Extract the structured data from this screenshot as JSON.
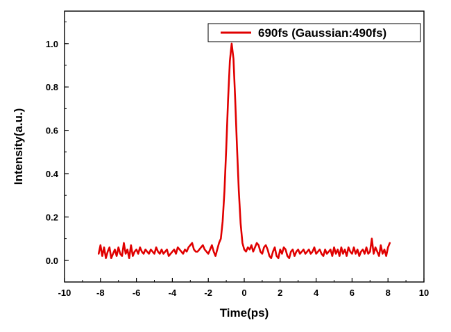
{
  "chart_data": {
    "type": "line",
    "title": "",
    "xlabel": "Time(ps)",
    "ylabel": "Intensity(a.u.)",
    "xlim": [
      -10,
      10
    ],
    "ylim": [
      -0.1,
      1.15
    ],
    "xticks": [
      -10,
      -8,
      -6,
      -4,
      -2,
      0,
      2,
      4,
      6,
      8,
      10
    ],
    "xtick_labels": [
      "-10",
      "-8",
      "-6",
      "-4",
      "-2",
      "0",
      "2",
      "4",
      "6",
      "8",
      "10"
    ],
    "yticks": [
      0.0,
      0.2,
      0.4,
      0.6,
      0.8,
      1.0
    ],
    "ytick_labels": [
      "0.0",
      "0.2",
      "0.4",
      "0.6",
      "0.8",
      "1.0"
    ],
    "grid": false,
    "legend_position": "top-right",
    "series": [
      {
        "name": "690fs (Gaussian:490fs)",
        "color": "#e00000",
        "x": [
          -8.1,
          -8.0,
          -7.9,
          -7.8,
          -7.7,
          -7.6,
          -7.5,
          -7.4,
          -7.3,
          -7.2,
          -7.1,
          -7.0,
          -6.9,
          -6.8,
          -6.7,
          -6.6,
          -6.5,
          -6.4,
          -6.3,
          -6.2,
          -6.1,
          -6.0,
          -5.9,
          -5.8,
          -5.7,
          -5.6,
          -5.5,
          -5.4,
          -5.3,
          -5.2,
          -5.1,
          -5.0,
          -4.9,
          -4.8,
          -4.7,
          -4.6,
          -4.5,
          -4.4,
          -4.3,
          -4.2,
          -4.1,
          -4.0,
          -3.9,
          -3.8,
          -3.7,
          -3.6,
          -3.5,
          -3.4,
          -3.3,
          -3.2,
          -3.1,
          -3.0,
          -2.9,
          -2.8,
          -2.7,
          -2.6,
          -2.5,
          -2.4,
          -2.3,
          -2.2,
          -2.1,
          -2.0,
          -1.9,
          -1.8,
          -1.7,
          -1.6,
          -1.5,
          -1.4,
          -1.3,
          -1.2,
          -1.1,
          -1.0,
          -0.9,
          -0.8,
          -0.7,
          -0.6,
          -0.5,
          -0.4,
          -0.3,
          -0.2,
          -0.1,
          0.0,
          0.1,
          0.2,
          0.3,
          0.4,
          0.5,
          0.6,
          0.7,
          0.8,
          0.9,
          1.0,
          1.1,
          1.2,
          1.3,
          1.4,
          1.5,
          1.6,
          1.7,
          1.8,
          1.9,
          2.0,
          2.1,
          2.2,
          2.3,
          2.4,
          2.5,
          2.6,
          2.7,
          2.8,
          2.9,
          3.0,
          3.1,
          3.2,
          3.3,
          3.4,
          3.5,
          3.6,
          3.7,
          3.8,
          3.9,
          4.0,
          4.1,
          4.2,
          4.3,
          4.4,
          4.5,
          4.6,
          4.7,
          4.8,
          4.9,
          5.0,
          5.1,
          5.2,
          5.3,
          5.4,
          5.5,
          5.6,
          5.7,
          5.8,
          5.9,
          6.0,
          6.1,
          6.2,
          6.3,
          6.4,
          6.5,
          6.6,
          6.7,
          6.8,
          6.9,
          7.0,
          7.1,
          7.2,
          7.3,
          7.4,
          7.5,
          7.6,
          7.7,
          7.8,
          7.9,
          8.0,
          8.1
        ],
        "y": [
          0.03,
          0.07,
          0.02,
          0.06,
          0.01,
          0.04,
          0.06,
          0.01,
          0.03,
          0.05,
          0.02,
          0.06,
          0.03,
          0.02,
          0.08,
          0.03,
          0.05,
          0.01,
          0.07,
          0.02,
          0.04,
          0.05,
          0.03,
          0.06,
          0.04,
          0.03,
          0.05,
          0.04,
          0.03,
          0.05,
          0.04,
          0.03,
          0.06,
          0.04,
          0.03,
          0.05,
          0.03,
          0.04,
          0.05,
          0.02,
          0.03,
          0.04,
          0.05,
          0.03,
          0.06,
          0.05,
          0.04,
          0.03,
          0.05,
          0.04,
          0.06,
          0.07,
          0.08,
          0.05,
          0.04,
          0.04,
          0.05,
          0.06,
          0.07,
          0.05,
          0.04,
          0.03,
          0.05,
          0.07,
          0.04,
          0.02,
          0.05,
          0.08,
          0.1,
          0.18,
          0.32,
          0.52,
          0.74,
          0.92,
          1.0,
          0.93,
          0.74,
          0.52,
          0.32,
          0.17,
          0.08,
          0.05,
          0.04,
          0.06,
          0.05,
          0.07,
          0.04,
          0.06,
          0.08,
          0.07,
          0.04,
          0.03,
          0.06,
          0.07,
          0.05,
          0.02,
          0.01,
          0.04,
          0.06,
          0.02,
          0.01,
          0.05,
          0.03,
          0.06,
          0.05,
          0.02,
          0.01,
          0.04,
          0.05,
          0.02,
          0.04,
          0.05,
          0.03,
          0.04,
          0.05,
          0.03,
          0.04,
          0.05,
          0.03,
          0.04,
          0.06,
          0.03,
          0.04,
          0.05,
          0.03,
          0.02,
          0.05,
          0.03,
          0.04,
          0.05,
          0.02,
          0.06,
          0.03,
          0.05,
          0.02,
          0.06,
          0.03,
          0.05,
          0.02,
          0.06,
          0.04,
          0.03,
          0.06,
          0.03,
          0.05,
          0.02,
          0.04,
          0.05,
          0.03,
          0.06,
          0.03,
          0.04,
          0.1,
          0.03,
          0.06,
          0.04,
          0.02,
          0.07,
          0.03,
          0.05,
          0.02,
          0.06,
          0.08
        ]
      }
    ]
  }
}
